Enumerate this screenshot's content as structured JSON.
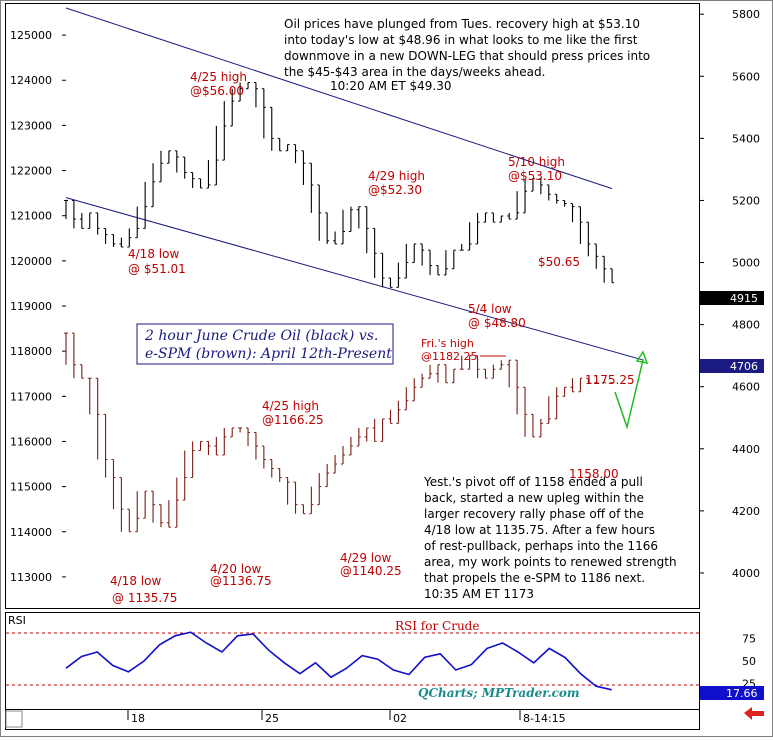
{
  "colors": {
    "crude": "#000000",
    "espm": "#7a1c12",
    "rsi": "#1010cc",
    "channel": "#1a1a80",
    "annot": "#c00000",
    "green_arrow": "#22bb22",
    "title_text": "#1a1a80",
    "watermark": "#1a8a8a",
    "crude_badge_bg": "#000000",
    "espm_badge_bg": "#1a1a80",
    "rsi_badge_bg": "#1010cc",
    "red_arrow": "#dd2222"
  },
  "icons": {
    "scroll_arrow": "red-left-arrow-icon"
  },
  "title_box": {
    "line1": "2 hour June Crude Oil (black) vs.",
    "line2": "e-SPM (brown): April 12th-Present"
  },
  "commentary_top": [
    "Oil prices have plunged from Tues. recovery high at $53.10",
    "into today's low at $48.96 in what looks to me like the first",
    "downmove in a new DOWN-LEG that should press prices into",
    "the $45-$43 area in the days/weeks ahead.",
    "10:20 AM ET $49.30"
  ],
  "commentary_bottom": [
    "Yest.'s pivot off of 1158 ended a pull",
    "back, started a new upleg within the",
    "larger recovery rally phase off of the",
    "4/18 low at 1135.75. After a few hours",
    "of rest-pullback, perhaps into the 1166",
    "area, my work points to renewed strength",
    "that propels the e-SPM to 1186 next.",
    "10:35 AM ET 1173"
  ],
  "crude_annotations": [
    {
      "l1": "4/25 high",
      "l2": "@$56.00"
    },
    {
      "l1": "4/18 low",
      "l2": "@ $51.01"
    },
    {
      "l1": "4/29 high",
      "l2": "@$52.30"
    },
    {
      "l1": "5/10 high",
      "l2": "@$53.10"
    },
    {
      "l1": "$50.65",
      "l2": ""
    },
    {
      "l1": "5/4 low",
      "l2": "@ $48.80"
    }
  ],
  "espm_annotations": [
    {
      "l1": "Fri.'s high",
      "l2": "@1182.25"
    },
    {
      "l1": "1175.25",
      "l2": ""
    },
    {
      "l1": "4/25 high",
      "l2": "@1166.25"
    },
    {
      "l1": "1158.00",
      "l2": ""
    },
    {
      "l1": "4/18 low",
      "l2": "@ 1135.75"
    },
    {
      "l1": "4/20 low",
      "l2": "@1136.75"
    },
    {
      "l1": "4/29 low",
      "l2": "@1140.25"
    }
  ],
  "rsi_panel": {
    "label": "RSI",
    "title": "RSI  for Crude",
    "watermark": "QCharts; MPTrader.com",
    "value_badge": "17.66"
  },
  "badges": {
    "crude_last": "4915",
    "espm_last": "4706"
  },
  "chart_data": {
    "type": "line",
    "title": "2 hour June Crude Oil (black) vs. e-SPM (brown): April 12th-Present",
    "x_ticks": [
      "18",
      "25",
      "02",
      "8-14:15"
    ],
    "left_axis": {
      "ticks": [
        125000,
        124000,
        123000,
        122000,
        121000,
        120000,
        119000,
        118000,
        117000,
        116000,
        115000,
        114000,
        113000
      ],
      "range": [
        112400,
        125600
      ]
    },
    "right_axis": {
      "ticks": [
        5800,
        5600,
        5400,
        5200,
        5000,
        4800,
        4600,
        4400,
        4200,
        4000
      ],
      "range": [
        3900,
        5820
      ]
    },
    "rsi_axis": {
      "ticks": [
        75,
        50,
        25
      ],
      "range": [
        0,
        100
      ]
    },
    "series": [
      {
        "name": "crude",
        "axis": "right",
        "scale": "crude price x100 on right axis",
        "points": [
          [
            0,
            5200
          ],
          [
            2,
            5140
          ],
          [
            4,
            5110
          ],
          [
            6,
            5160
          ],
          [
            8,
            5110
          ],
          [
            10,
            5090
          ],
          [
            12,
            5060
          ],
          [
            14,
            5050
          ],
          [
            16,
            5080
          ],
          [
            18,
            5110
          ],
          [
            20,
            5180
          ],
          [
            22,
            5260
          ],
          [
            24,
            5320
          ],
          [
            26,
            5360
          ],
          [
            28,
            5340
          ],
          [
            30,
            5290
          ],
          [
            32,
            5270
          ],
          [
            34,
            5240
          ],
          [
            36,
            5250
          ],
          [
            38,
            5330
          ],
          [
            40,
            5440
          ],
          [
            42,
            5520
          ],
          [
            44,
            5560
          ],
          [
            46,
            5580
          ],
          [
            48,
            5560
          ],
          [
            50,
            5500
          ],
          [
            52,
            5400
          ],
          [
            54,
            5360
          ],
          [
            56,
            5380
          ],
          [
            58,
            5360
          ],
          [
            60,
            5320
          ],
          [
            62,
            5250
          ],
          [
            64,
            5160
          ],
          [
            66,
            5070
          ],
          [
            68,
            5060
          ],
          [
            70,
            5100
          ],
          [
            72,
            5170
          ],
          [
            74,
            5180
          ],
          [
            76,
            5110
          ],
          [
            78,
            5030
          ],
          [
            80,
            4950
          ],
          [
            82,
            4920
          ],
          [
            84,
            4950
          ],
          [
            86,
            5000
          ],
          [
            88,
            5060
          ],
          [
            90,
            5040
          ],
          [
            92,
            4990
          ],
          [
            94,
            4960
          ],
          [
            96,
            4980
          ],
          [
            98,
            5040
          ],
          [
            100,
            5040
          ],
          [
            102,
            5060
          ],
          [
            104,
            5130
          ],
          [
            106,
            5160
          ],
          [
            108,
            5130
          ],
          [
            110,
            5150
          ],
          [
            112,
            5140
          ],
          [
            114,
            5160
          ],
          [
            116,
            5230
          ],
          [
            118,
            5270
          ],
          [
            120,
            5250
          ],
          [
            122,
            5220
          ],
          [
            124,
            5200
          ],
          [
            126,
            5190
          ],
          [
            128,
            5180
          ],
          [
            130,
            5130
          ],
          [
            132,
            5060
          ],
          [
            134,
            5020
          ],
          [
            136,
            4980
          ],
          [
            138,
            4935
          ]
        ]
      },
      {
        "name": "e-SPM",
        "axis": "left",
        "points": [
          [
            0,
            118400
          ],
          [
            2,
            117700
          ],
          [
            4,
            117400
          ],
          [
            6,
            117400
          ],
          [
            8,
            116600
          ],
          [
            10,
            115600
          ],
          [
            12,
            115200
          ],
          [
            14,
            114500
          ],
          [
            16,
            114000
          ],
          [
            18,
            114300
          ],
          [
            20,
            114900
          ],
          [
            22,
            114600
          ],
          [
            24,
            114200
          ],
          [
            26,
            114100
          ],
          [
            28,
            114700
          ],
          [
            30,
            115200
          ],
          [
            32,
            115800
          ],
          [
            34,
            116000
          ],
          [
            36,
            115900
          ],
          [
            38,
            115700
          ],
          [
            40,
            116100
          ],
          [
            42,
            116300
          ],
          [
            44,
            116300
          ],
          [
            46,
            116200
          ],
          [
            48,
            115900
          ],
          [
            50,
            115600
          ],
          [
            52,
            115400
          ],
          [
            54,
            115200
          ],
          [
            56,
            115100
          ],
          [
            58,
            114600
          ],
          [
            60,
            114400
          ],
          [
            62,
            114600
          ],
          [
            64,
            115000
          ],
          [
            66,
            115300
          ],
          [
            68,
            115500
          ],
          [
            70,
            115700
          ],
          [
            72,
            115900
          ],
          [
            74,
            116100
          ],
          [
            76,
            116300
          ],
          [
            78,
            116000
          ],
          [
            80,
            116500
          ],
          [
            82,
            116400
          ],
          [
            84,
            116700
          ],
          [
            86,
            116900
          ],
          [
            88,
            117200
          ],
          [
            90,
            117400
          ],
          [
            92,
            117500
          ],
          [
            94,
            117700
          ],
          [
            96,
            117300
          ],
          [
            98,
            117600
          ],
          [
            100,
            117600
          ],
          [
            102,
            117900
          ],
          [
            104,
            117600
          ],
          [
            106,
            117400
          ],
          [
            108,
            117600
          ],
          [
            110,
            117700
          ],
          [
            112,
            117800
          ],
          [
            114,
            117200
          ],
          [
            116,
            116600
          ],
          [
            118,
            116100
          ],
          [
            120,
            116400
          ],
          [
            122,
            116500
          ],
          [
            124,
            117000
          ],
          [
            126,
            117200
          ],
          [
            128,
            117100
          ],
          [
            130,
            117400
          ],
          [
            132,
            117300
          ],
          [
            134,
            117300
          ],
          [
            136,
            117300
          ],
          [
            138,
            117300
          ]
        ]
      },
      {
        "name": "RSI",
        "axis": "rsi",
        "points": [
          [
            0,
            42
          ],
          [
            4,
            55
          ],
          [
            8,
            60
          ],
          [
            12,
            45
          ],
          [
            16,
            38
          ],
          [
            20,
            50
          ],
          [
            24,
            68
          ],
          [
            28,
            78
          ],
          [
            32,
            82
          ],
          [
            36,
            70
          ],
          [
            40,
            60
          ],
          [
            44,
            78
          ],
          [
            48,
            80
          ],
          [
            52,
            62
          ],
          [
            56,
            48
          ],
          [
            60,
            36
          ],
          [
            64,
            48
          ],
          [
            68,
            32
          ],
          [
            72,
            42
          ],
          [
            76,
            56
          ],
          [
            80,
            52
          ],
          [
            84,
            40
          ],
          [
            88,
            35
          ],
          [
            92,
            54
          ],
          [
            96,
            58
          ],
          [
            100,
            40
          ],
          [
            104,
            46
          ],
          [
            108,
            64
          ],
          [
            112,
            70
          ],
          [
            116,
            60
          ],
          [
            120,
            48
          ],
          [
            124,
            64
          ],
          [
            128,
            54
          ],
          [
            132,
            36
          ],
          [
            136,
            22
          ],
          [
            140,
            18
          ]
        ]
      }
    ],
    "channel_lines": [
      {
        "name": "upper channel",
        "from": [
          0,
          125600
        ],
        "to": [
          138,
          121600
        ]
      },
      {
        "name": "lower channel",
        "from": [
          0,
          121400
        ],
        "to": [
          146,
          117800
        ]
      }
    ],
    "grid": false,
    "legend": "none"
  }
}
